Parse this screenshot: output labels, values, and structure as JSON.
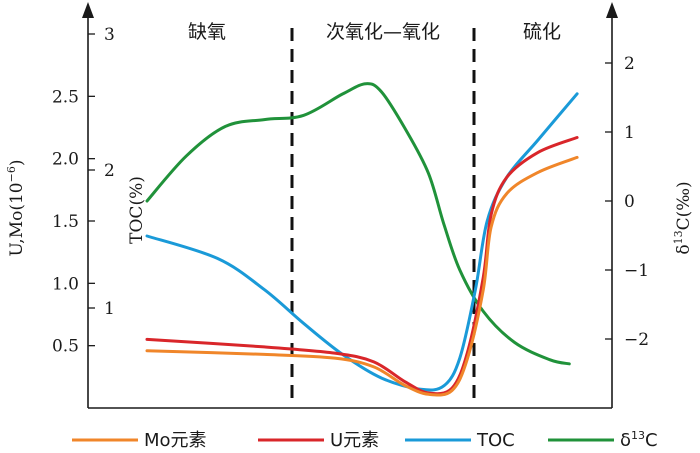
{
  "chart_data": {
    "type": "line",
    "zones": [
      "缺氧",
      "次氧化—氧化",
      "硫化"
    ],
    "left_axis": {
      "label": "U,Mo(10",
      "label_sup": "−6",
      "label_end": ")",
      "ylim": [
        0.0,
        3.0
      ],
      "ticks": [
        "0.5",
        "1.0",
        "1.5",
        "2.0",
        "2.5"
      ]
    },
    "toc_axis": {
      "label": "TOC(%)",
      "ticks": [
        "1",
        "2",
        "3"
      ]
    },
    "right_axis": {
      "label_pre": "δ",
      "label_sup": "13",
      "label_post": "C(‰)",
      "ylim": [
        -3.0,
        2.8
      ],
      "ticks": [
        "2",
        "1",
        "0",
        "−1",
        "−2"
      ]
    },
    "series": [
      {
        "name": "Mo元素",
        "color": "#f0862a",
        "axis": "left",
        "points": [
          [
            0,
            0.46
          ],
          [
            30,
            0.43
          ],
          [
            48,
            0.4
          ],
          [
            58,
            0.33
          ],
          [
            66,
            0.18
          ],
          [
            72,
            0.11
          ],
          [
            78,
            0.14
          ],
          [
            82,
            0.4
          ],
          [
            86,
            0.95
          ],
          [
            88,
            1.45
          ],
          [
            92,
            1.72
          ],
          [
            100,
            1.89
          ],
          [
            110,
            2.01
          ]
        ]
      },
      {
        "name": "U元素",
        "color": "#d9262a",
        "axis": "left",
        "points": [
          [
            0,
            0.55
          ],
          [
            30,
            0.49
          ],
          [
            48,
            0.44
          ],
          [
            58,
            0.37
          ],
          [
            66,
            0.21
          ],
          [
            72,
            0.12
          ],
          [
            78,
            0.16
          ],
          [
            82,
            0.45
          ],
          [
            86,
            1.05
          ],
          [
            88,
            1.55
          ],
          [
            92,
            1.85
          ],
          [
            100,
            2.05
          ],
          [
            110,
            2.17
          ]
        ]
      },
      {
        "name": "TOC",
        "color": "#1a9ad8",
        "axis": "left",
        "points": [
          [
            0,
            1.38
          ],
          [
            18,
            1.2
          ],
          [
            30,
            0.95
          ],
          [
            40,
            0.68
          ],
          [
            50,
            0.43
          ],
          [
            60,
            0.24
          ],
          [
            70,
            0.15
          ],
          [
            76,
            0.18
          ],
          [
            80,
            0.4
          ],
          [
            84,
            0.95
          ],
          [
            87,
            1.5
          ],
          [
            92,
            1.85
          ],
          [
            100,
            2.15
          ],
          [
            110,
            2.52
          ]
        ]
      },
      {
        "name": "δ13C",
        "color": "#20923a",
        "axis": "right",
        "points": [
          [
            0,
            0.0
          ],
          [
            10,
            0.65
          ],
          [
            20,
            1.08
          ],
          [
            30,
            1.18
          ],
          [
            40,
            1.24
          ],
          [
            50,
            1.55
          ],
          [
            56,
            1.7
          ],
          [
            60,
            1.58
          ],
          [
            66,
            1.05
          ],
          [
            72,
            0.4
          ],
          [
            76,
            -0.35
          ],
          [
            80,
            -1.0
          ],
          [
            86,
            -1.6
          ],
          [
            94,
            -2.05
          ],
          [
            103,
            -2.3
          ],
          [
            108,
            -2.36
          ]
        ]
      }
    ],
    "legend": {
      "placement": "bottom",
      "entries": [
        "Mo元素",
        "U元素",
        "TOC",
        "δ13C"
      ]
    }
  }
}
